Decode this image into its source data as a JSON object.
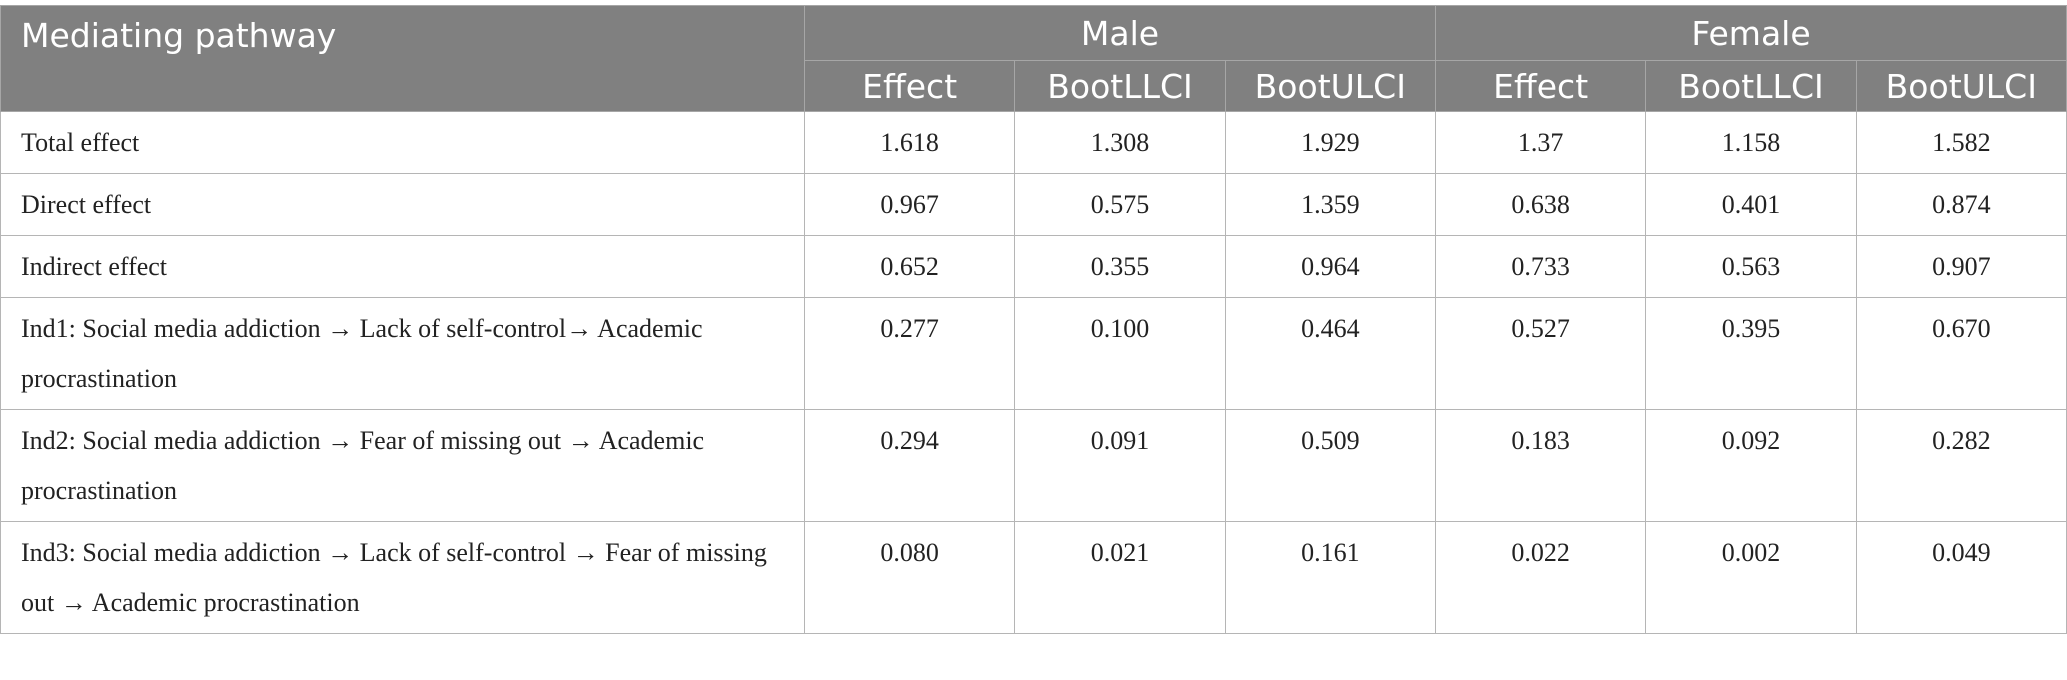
{
  "table": {
    "header": {
      "first": "Mediating pathway",
      "groups": [
        "Male",
        "Female"
      ],
      "subheaders": [
        "Effect",
        "BootLLCI",
        "BootULCI",
        "Effect",
        "BootLLCI",
        "BootULCI"
      ]
    },
    "rows": [
      [
        "Total effect",
        "1.618",
        "1.308",
        "1.929",
        "1.37",
        "1.158",
        "1.582"
      ],
      [
        "Direct effect",
        "0.967",
        "0.575",
        "1.359",
        "0.638",
        "0.401",
        "0.874"
      ],
      [
        "Indirect effect",
        "0.652",
        "0.355",
        "0.964",
        "0.733",
        "0.563",
        "0.907"
      ],
      [
        "Ind1: Social media addiction → Lack of self-control→ Academic procrastination",
        "0.277",
        "0.100",
        "0.464",
        "0.527",
        "0.395",
        "0.670"
      ],
      [
        "Ind2: Social media addiction → Fear of missing out → Academic procrastination",
        "0.294",
        "0.091",
        "0.509",
        "0.183",
        "0.092",
        "0.282"
      ],
      [
        "Ind3: Social media addiction → Lack of self-control → Fear of missing out → Academic procrastination",
        "0.080",
        "0.021",
        "0.161",
        "0.022",
        "0.002",
        "0.049"
      ]
    ]
  }
}
